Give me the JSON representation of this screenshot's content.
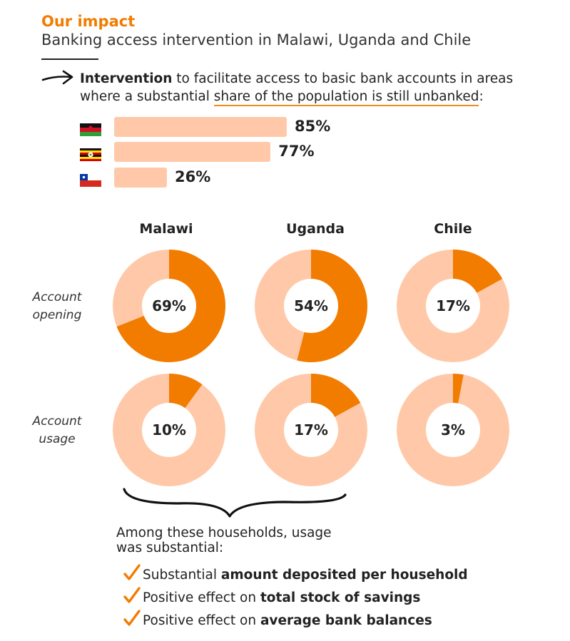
{
  "header": {
    "title": "Our impact",
    "subtitle": "Banking access intervention in Malawi, Uganda and Chile"
  },
  "intro": {
    "bold": "Intervention",
    "text1": " to facilitate access to basic bank accounts in areas where a substantial ",
    "underlined": "share of the population is still unbanked",
    "text2": ":"
  },
  "colors": {
    "accent": "#f27c00",
    "light": "#ffc9a9"
  },
  "chart_data": [
    {
      "type": "bar",
      "orientation": "horizontal",
      "categories": [
        "Malawi",
        "Uganda",
        "Chile"
      ],
      "values": [
        85,
        77,
        26
      ],
      "labels": [
        "85%",
        "77%",
        "26%"
      ],
      "icons": [
        "malawi-flag-icon",
        "uganda-flag-icon",
        "chile-flag-icon"
      ]
    },
    {
      "type": "pie",
      "variant": "donut-grid",
      "columns": [
        "Malawi",
        "Uganda",
        "Chile"
      ],
      "rows": [
        "Account opening",
        "Account usage"
      ],
      "values": [
        [
          69,
          54,
          17
        ],
        [
          10,
          17,
          3
        ]
      ],
      "labels": [
        [
          "69%",
          "54%",
          "17%"
        ],
        [
          "10%",
          "17%",
          "3%"
        ]
      ]
    }
  ],
  "row_labels": {
    "opening_line1": "Account",
    "opening_line2": "opening",
    "usage_line1": "Account",
    "usage_line2": "usage"
  },
  "summary": {
    "line1": "Among these households, usage",
    "line2": "was substantial:",
    "items": [
      {
        "prefix": "Substantial ",
        "bold": "amount deposited per household"
      },
      {
        "prefix": "Positive effect on ",
        "bold": "total stock of savings"
      },
      {
        "prefix": "Positive effect on ",
        "bold": "average bank balances"
      }
    ]
  }
}
